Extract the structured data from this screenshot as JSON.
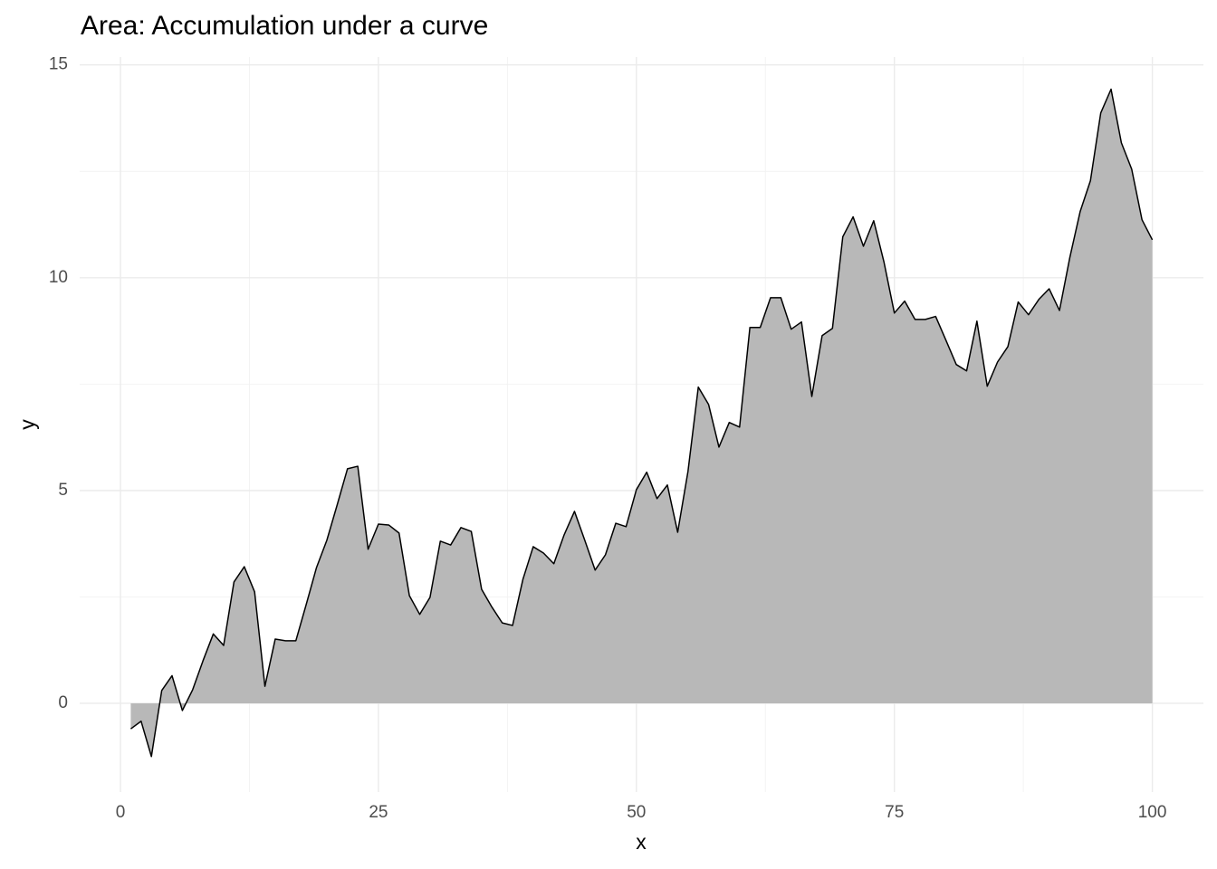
{
  "chart_data": {
    "type": "area",
    "title": "Area: Accumulation under a curve",
    "x_label": "x",
    "y_label": "y",
    "x": [
      1,
      2,
      3,
      4,
      5,
      6,
      7,
      8,
      9,
      10,
      11,
      12,
      13,
      14,
      15,
      16,
      17,
      18,
      19,
      20,
      21,
      22,
      23,
      24,
      25,
      26,
      27,
      28,
      29,
      30,
      31,
      32,
      33,
      34,
      35,
      36,
      37,
      38,
      39,
      40,
      41,
      42,
      43,
      44,
      45,
      46,
      47,
      48,
      49,
      50,
      51,
      52,
      53,
      54,
      55,
      56,
      57,
      58,
      59,
      60,
      61,
      62,
      63,
      64,
      65,
      66,
      67,
      68,
      69,
      70,
      71,
      72,
      73,
      74,
      75,
      76,
      77,
      78,
      79,
      80,
      81,
      82,
      83,
      84,
      85,
      86,
      87,
      88,
      89,
      90,
      91,
      92,
      93,
      94,
      95,
      96,
      97,
      98,
      99,
      100
    ],
    "values": [
      -0.6,
      -0.42,
      -1.25,
      0.3,
      0.65,
      -0.17,
      0.32,
      1.0,
      1.63,
      1.36,
      2.85,
      3.21,
      2.62,
      0.4,
      1.51,
      1.47,
      1.47,
      2.32,
      3.19,
      3.83,
      4.66,
      5.51,
      5.57,
      3.62,
      4.21,
      4.19,
      4.0,
      2.53,
      2.09,
      2.49,
      3.81,
      3.72,
      4.13,
      4.04,
      2.68,
      2.26,
      1.89,
      1.83,
      2.91,
      3.68,
      3.53,
      3.28,
      3.96,
      4.51,
      3.83,
      3.13,
      3.49,
      4.23,
      4.15,
      5.02,
      5.43,
      4.81,
      5.13,
      4.02,
      5.45,
      7.43,
      7.02,
      6.02,
      6.6,
      6.49,
      8.83,
      8.83,
      9.53,
      9.53,
      8.79,
      8.96,
      7.21,
      8.64,
      8.81,
      10.96,
      11.43,
      10.74,
      11.34,
      10.36,
      9.17,
      9.45,
      9.02,
      9.02,
      9.09,
      8.53,
      7.96,
      7.81,
      8.98,
      7.45,
      8.02,
      8.38,
      9.43,
      9.13,
      9.49,
      9.74,
      9.23,
      10.47,
      11.55,
      12.28,
      13.87,
      14.43,
      13.17,
      12.55,
      11.36,
      10.89
    ],
    "color": "#b8b8b8",
    "line_color": "#000000",
    "xlim": [
      -3.95,
      104.95
    ],
    "xticks": [
      0,
      25,
      50,
      75,
      100
    ],
    "xminor": [
      12.5,
      37.5,
      62.5,
      87.5
    ],
    "ylim": [
      -2.085,
      15.185
    ],
    "yticks": [
      0,
      5,
      10,
      15
    ],
    "yminor": [
      2.5,
      7.5,
      12.5
    ],
    "grid": true
  }
}
